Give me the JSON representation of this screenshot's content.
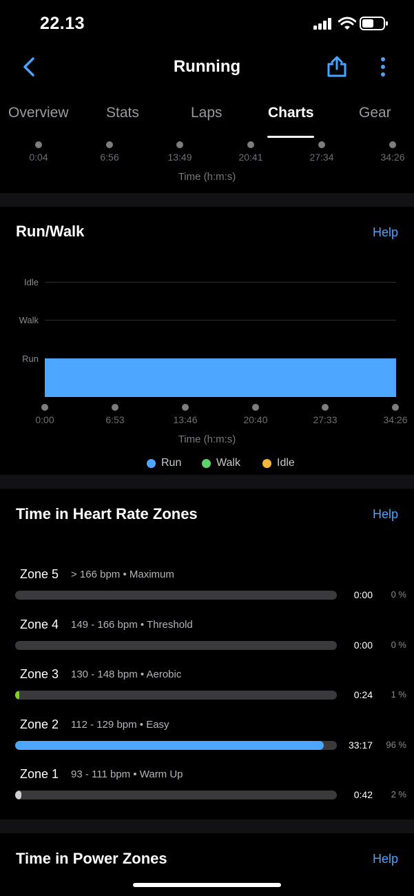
{
  "status_bar": {
    "time": "22.13"
  },
  "header": {
    "title": "Running",
    "back_icon": "chevron-left-icon",
    "share_icon": "share-icon",
    "more_icon": "more-vertical-icon",
    "accent": "#4aa3ff"
  },
  "tabs": [
    {
      "label": "Overview"
    },
    {
      "label": "Stats"
    },
    {
      "label": "Laps"
    },
    {
      "label": "Charts",
      "active": true
    },
    {
      "label": "Gear"
    }
  ],
  "top_axis": {
    "ticks": [
      "0:04",
      "6:56",
      "13:49",
      "20:41",
      "27:34",
      "34:26"
    ],
    "title": "Time (h:m:s)"
  },
  "run_walk": {
    "title": "Run/Walk",
    "help": "Help",
    "chart_data": {
      "type": "bar",
      "categories": [
        "Idle",
        "Walk",
        "Run"
      ],
      "series": [
        {
          "name": "Run",
          "color": "#4da6ff",
          "x_start": "0:00",
          "x_end": "34:26",
          "category": "Run"
        }
      ],
      "x_ticks": [
        "0:00",
        "6:53",
        "13:46",
        "20:40",
        "27:33",
        "34:26"
      ],
      "xlabel": "Time (h:m:s)",
      "legend": [
        {
          "name": "Run",
          "color": "#4da6ff"
        },
        {
          "name": "Walk",
          "color": "#5fd36b"
        },
        {
          "name": "Idle",
          "color": "#f6b73c"
        }
      ]
    }
  },
  "hr_zones": {
    "title": "Time in Heart Rate Zones",
    "help": "Help",
    "zones": [
      {
        "name": "Zone 5",
        "range": "> 166 bpm • Maximum",
        "time": "0:00",
        "percent": "0 %",
        "fraction": 0.0,
        "color": "#8e8e93"
      },
      {
        "name": "Zone 4",
        "range": "149 - 166 bpm • Threshold",
        "time": "0:00",
        "percent": "0 %",
        "fraction": 0.0,
        "color": "#8e8e93"
      },
      {
        "name": "Zone 3",
        "range": "130 - 148 bpm • Aerobic",
        "time": "0:24",
        "percent": "1 %",
        "fraction": 0.012,
        "color": "#7ed321"
      },
      {
        "name": "Zone 2",
        "range": "112 - 129 bpm • Easy",
        "time": "33:17",
        "percent": "96 %",
        "fraction": 0.96,
        "color": "#4da6ff"
      },
      {
        "name": "Zone 1",
        "range": "93 - 111 bpm • Warm Up",
        "time": "0:42",
        "percent": "2 %",
        "fraction": 0.02,
        "color": "#d0d0d4"
      }
    ]
  },
  "power_zones": {
    "title": "Time in Power Zones",
    "help": "Help"
  }
}
